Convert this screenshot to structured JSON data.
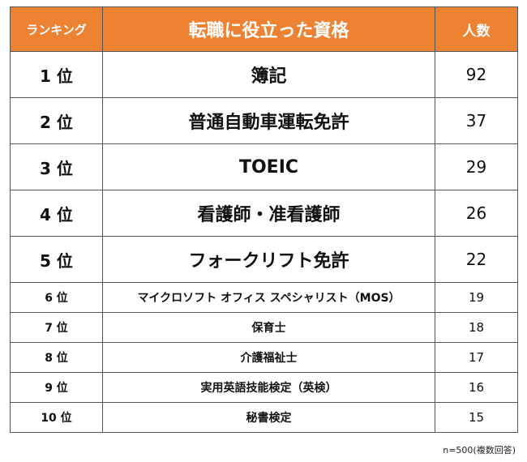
{
  "header": {
    "rank": "ランキング",
    "name": "転職に役立った資格",
    "count": "人数"
  },
  "header_color": "#ee8233",
  "rows": [
    {
      "rank": "1 位",
      "name": "簿記",
      "count": "92"
    },
    {
      "rank": "2 位",
      "name": "普通自動車運転免許",
      "count": "37"
    },
    {
      "rank": "3 位",
      "name": "TOEIC",
      "count": "29"
    },
    {
      "rank": "4 位",
      "name": "看護師・准看護師",
      "count": "26"
    },
    {
      "rank": "5 位",
      "name": "フォークリフト免許",
      "count": "22"
    },
    {
      "rank": "6 位",
      "name": "マイクロソフト オフィス スペシャリスト（MOS）",
      "count": "19"
    },
    {
      "rank": "7 位",
      "name": "保育士",
      "count": "18"
    },
    {
      "rank": "8 位",
      "name": "介護福祉士",
      "count": "17"
    },
    {
      "rank": "9 位",
      "name": "実用英語技能検定（英検）",
      "count": "16"
    },
    {
      "rank": "10 位",
      "name": "秘書検定",
      "count": "15"
    }
  ],
  "note": "n=500(複数回答)"
}
